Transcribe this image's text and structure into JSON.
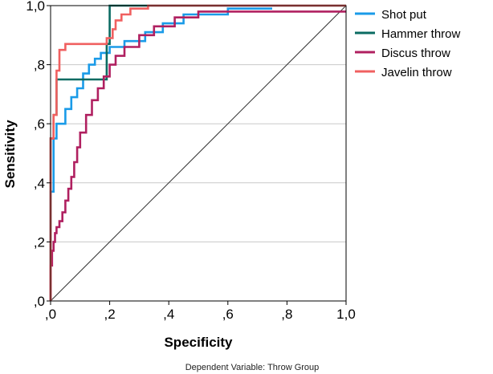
{
  "chart_data": {
    "type": "line",
    "title": "",
    "xlabel": "Specificity",
    "ylabel": "Sensitivity",
    "xlim": [
      0,
      1
    ],
    "ylim": [
      0,
      1
    ],
    "xticks": [
      ",0",
      ",2",
      ",4",
      ",6",
      ",8",
      "1,0"
    ],
    "yticks": [
      ",0",
      ",2",
      ",4",
      ",6",
      ",8",
      "1,0"
    ],
    "grid": "horizontal",
    "legend_position": "right",
    "note": "Dependent Variable: Throw Group",
    "reference_line": {
      "name": "diagonal",
      "color": "#333333",
      "x": [
        0,
        1
      ],
      "y": [
        0,
        1
      ]
    },
    "series": [
      {
        "name": "Shot put",
        "color": "#1a9be8",
        "x": [
          0,
          0,
          0.01,
          0.01,
          0.02,
          0.02,
          0.05,
          0.05,
          0.07,
          0.07,
          0.09,
          0.09,
          0.11,
          0.11,
          0.13,
          0.13,
          0.15,
          0.15,
          0.17,
          0.17,
          0.2,
          0.2,
          0.25,
          0.25,
          0.32,
          0.32,
          0.38,
          0.38,
          0.45,
          0.45,
          0.6,
          0.6,
          0.75
        ],
        "y": [
          0,
          0.37,
          0.37,
          0.55,
          0.55,
          0.6,
          0.6,
          0.65,
          0.65,
          0.69,
          0.69,
          0.72,
          0.72,
          0.77,
          0.77,
          0.8,
          0.8,
          0.82,
          0.82,
          0.84,
          0.84,
          0.86,
          0.86,
          0.88,
          0.88,
          0.91,
          0.91,
          0.94,
          0.94,
          0.97,
          0.97,
          0.99,
          0.99
        ]
      },
      {
        "name": "Hammer throw",
        "color": "#0a6b62",
        "x": [
          0,
          0,
          0.01,
          0.01,
          0.02,
          0.02,
          0.19,
          0.19,
          0.2,
          0.2,
          1
        ],
        "y": [
          0,
          0.55,
          0.55,
          0.63,
          0.63,
          0.75,
          0.75,
          0.87,
          0.87,
          1,
          1
        ]
      },
      {
        "name": "Discus throw",
        "color": "#b02060",
        "x": [
          0,
          0,
          0.005,
          0.005,
          0.01,
          0.01,
          0.015,
          0.015,
          0.02,
          0.02,
          0.03,
          0.03,
          0.04,
          0.04,
          0.05,
          0.05,
          0.06,
          0.06,
          0.07,
          0.07,
          0.08,
          0.08,
          0.09,
          0.09,
          0.1,
          0.1,
          0.12,
          0.12,
          0.14,
          0.14,
          0.16,
          0.16,
          0.18,
          0.18,
          0.2,
          0.2,
          0.22,
          0.22,
          0.25,
          0.25,
          0.3,
          0.3,
          0.35,
          0.35,
          0.42,
          0.42,
          0.5,
          0.5,
          1
        ],
        "y": [
          0,
          0.12,
          0.12,
          0.17,
          0.17,
          0.2,
          0.2,
          0.23,
          0.23,
          0.25,
          0.25,
          0.27,
          0.27,
          0.3,
          0.3,
          0.34,
          0.34,
          0.38,
          0.38,
          0.42,
          0.42,
          0.47,
          0.47,
          0.52,
          0.52,
          0.57,
          0.57,
          0.63,
          0.63,
          0.68,
          0.68,
          0.72,
          0.72,
          0.76,
          0.76,
          0.8,
          0.8,
          0.83,
          0.83,
          0.86,
          0.86,
          0.9,
          0.9,
          0.93,
          0.93,
          0.96,
          0.96,
          0.98,
          0.98
        ]
      },
      {
        "name": "Javelin throw",
        "color": "#f06060",
        "x": [
          0,
          0,
          0.01,
          0.01,
          0.02,
          0.02,
          0.03,
          0.03,
          0.05,
          0.05,
          0.19,
          0.19,
          0.21,
          0.21,
          0.22,
          0.22,
          0.24,
          0.24,
          0.27,
          0.27,
          0.33,
          0.33,
          0.5,
          0.5,
          1
        ],
        "y": [
          0,
          0.55,
          0.55,
          0.63,
          0.63,
          0.78,
          0.78,
          0.85,
          0.85,
          0.87,
          0.87,
          0.89,
          0.89,
          0.92,
          0.92,
          0.95,
          0.95,
          0.97,
          0.97,
          0.99,
          0.99,
          1,
          1,
          1,
          1
        ]
      }
    ]
  }
}
